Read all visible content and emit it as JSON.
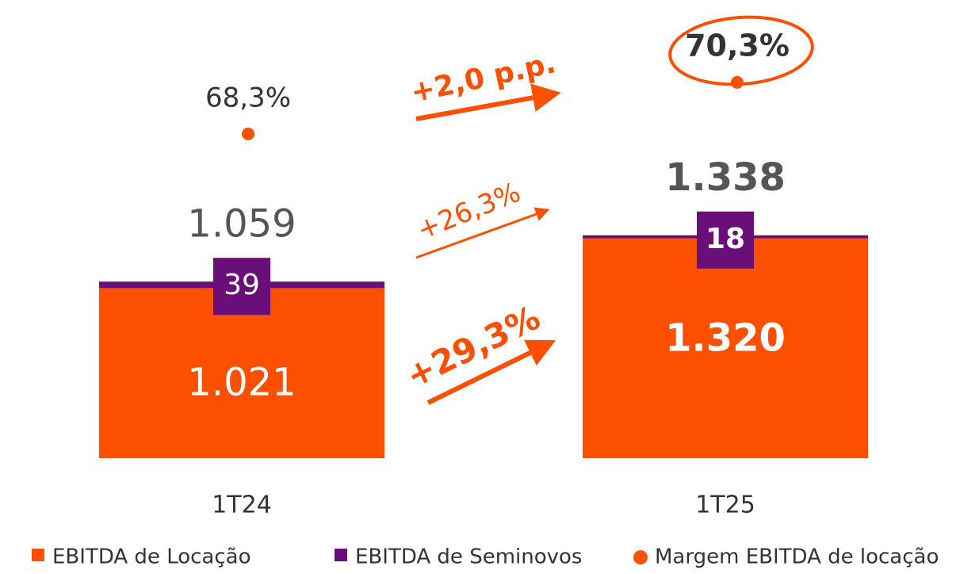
{
  "chart_data": {
    "type": "stacked-bar-dot",
    "categories": [
      "1T24",
      "1T25"
    ],
    "series": [
      {
        "name": "EBITDA de Locação",
        "color": "#fc5000",
        "values": [
          1021,
          1320
        ],
        "value_labels": [
          "1.021",
          "1.320"
        ]
      },
      {
        "name": "EBITDA de Seminovos",
        "color": "#6a0f7a",
        "values": [
          39,
          18
        ],
        "value_labels": [
          "39",
          "18"
        ]
      },
      {
        "name": "Margem EBITDA de locação",
        "color": "#fc5000",
        "axis": "y2",
        "values": [
          68.3,
          70.3
        ],
        "value_labels": [
          "68,3%",
          "70,3%"
        ]
      }
    ],
    "totals": {
      "values": [
        1059,
        1338
      ],
      "value_labels": [
        "1.059",
        "1.338"
      ]
    },
    "annotations": [
      "+2,0 p.p.",
      "+26,3%",
      "+29,3%"
    ],
    "ylim": [
      0,
      2750
    ],
    "y2lim": [
      55.7,
      73.5
    ]
  }
}
